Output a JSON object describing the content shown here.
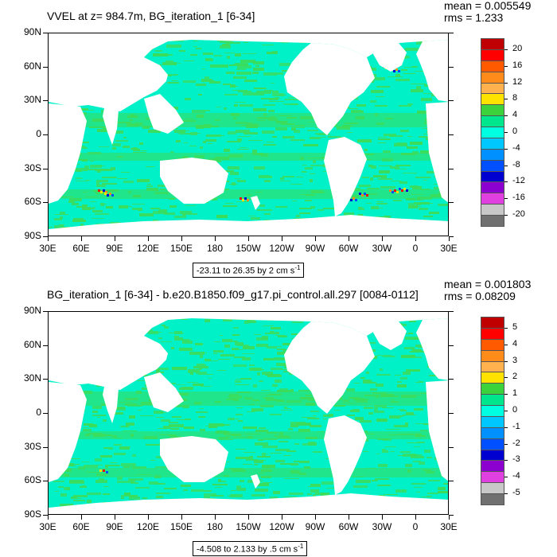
{
  "panels": [
    {
      "id": "top",
      "title": "VVEL at z= 984.7m, BG_iteration_1 [6-34]",
      "stats_mean": "mean = 0.005549",
      "stats_rms": "rms = 1.233",
      "range_text": "-23.11 to 26.35 by 2 cm s",
      "range_unit_exp": "-1",
      "colorbar_labels": [
        "20",
        "16",
        "12",
        "8",
        "4",
        "0",
        "-4",
        "-8",
        "-12",
        "-16",
        "-20"
      ],
      "colorbar_colors": [
        "#c00000",
        "#ff0000",
        "#ff5a00",
        "#ff8c1a",
        "#ffb24d",
        "#ffe300",
        "#3cd23c",
        "#00e68c",
        "#00ffe0",
        "#00c8ff",
        "#0090ff",
        "#0050ff",
        "#0000d0",
        "#8c00d0",
        "#e040e0",
        "#c8c8c8",
        "#707070"
      ],
      "hotspots": true
    },
    {
      "id": "bottom",
      "title": "BG_iteration_1 [6-34] - b.e20.B1850.f09_g17.pi_control.all.297 [0084-0112]",
      "stats_mean": "mean = 0.001803",
      "stats_rms": "rms = 0.08209",
      "range_text": "-4.508 to 2.133 by .5 cm s",
      "range_unit_exp": "-1",
      "colorbar_labels": [
        "5",
        "4",
        "3",
        "2",
        "1",
        "0",
        "-1",
        "-2",
        "-3",
        "-4",
        "-5"
      ],
      "colorbar_colors": [
        "#c00000",
        "#ff0000",
        "#ff5a00",
        "#ff8c1a",
        "#ffb24d",
        "#ffe300",
        "#3cd23c",
        "#00e68c",
        "#00ffe0",
        "#00c8ff",
        "#0090ff",
        "#0050ff",
        "#0000d0",
        "#8c00d0",
        "#e040e0",
        "#c8c8c8",
        "#707070"
      ],
      "hotspots": false
    }
  ],
  "lat_ticks": [
    "90N",
    "60N",
    "30N",
    "0",
    "30S",
    "60S",
    "90S"
  ],
  "lon_ticks": [
    "30E",
    "60E",
    "90E",
    "120E",
    "150E",
    "180",
    "150W",
    "120W",
    "90W",
    "60W",
    "30W",
    "0",
    "30E"
  ],
  "colors": {
    "ocean_main": "#00f0c8",
    "ocean_green": "#3cdc5a",
    "land": "#ffffff"
  }
}
